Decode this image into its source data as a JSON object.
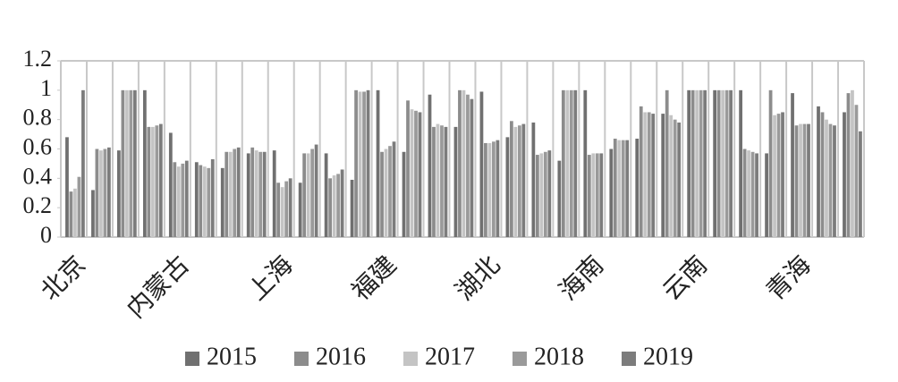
{
  "chart_data": {
    "type": "bar",
    "categories": [
      "北京",
      null,
      null,
      null,
      "内蒙古",
      null,
      null,
      null,
      "上海",
      null,
      null,
      null,
      "福建",
      null,
      null,
      null,
      "湖北",
      null,
      null,
      null,
      "海南",
      null,
      null,
      null,
      "云南",
      null,
      null,
      null,
      "青海",
      null,
      null
    ],
    "series": [
      {
        "name": "2015",
        "color": "#707070",
        "values": [
          0.68,
          0.32,
          0.59,
          1,
          0.71,
          0.51,
          0.47,
          0.57,
          0.59,
          0.37,
          0.57,
          0.39,
          1,
          0.58,
          0.97,
          0.75,
          0.99,
          0.68,
          0.78,
          0.52,
          1,
          0.6,
          0.67,
          0.84,
          1,
          1,
          1,
          0.57,
          0.98,
          0.89,
          0.85
        ]
      },
      {
        "name": "2016",
        "color": "#8c8c8c",
        "values": [
          0.31,
          0.6,
          1,
          0.75,
          0.51,
          0.49,
          0.58,
          0.61,
          0.37,
          0.57,
          0.4,
          1,
          0.58,
          0.93,
          0.75,
          1,
          0.64,
          0.79,
          0.56,
          1,
          0.56,
          0.67,
          0.89,
          1,
          1,
          1,
          0.6,
          1,
          0.76,
          0.85,
          0.98
        ]
      },
      {
        "name": "2017",
        "color": "#c4c4c4",
        "values": [
          0.33,
          0.59,
          1,
          0.75,
          0.48,
          0.48,
          0.58,
          0.59,
          0.34,
          0.57,
          0.42,
          0.99,
          0.6,
          0.87,
          0.77,
          1,
          0.64,
          0.75,
          0.57,
          1,
          0.57,
          0.66,
          0.85,
          0.83,
          1,
          1,
          0.59,
          0.83,
          0.77,
          0.8,
          1
        ]
      },
      {
        "name": "2018",
        "color": "#9a9a9a",
        "values": [
          0.41,
          0.6,
          1,
          0.76,
          0.5,
          0.47,
          0.6,
          0.58,
          0.38,
          0.6,
          0.43,
          0.99,
          0.62,
          0.86,
          0.76,
          0.97,
          0.65,
          0.76,
          0.58,
          1,
          0.57,
          0.66,
          0.85,
          0.8,
          1,
          1,
          0.58,
          0.84,
          0.77,
          0.77,
          0.9
        ]
      },
      {
        "name": "2019",
        "color": "#7c7c7c",
        "values": [
          1,
          0.61,
          1,
          0.77,
          0.52,
          0.53,
          0.61,
          0.58,
          0.4,
          0.63,
          0.46,
          1,
          0.65,
          0.85,
          0.75,
          0.94,
          0.66,
          0.77,
          0.59,
          1,
          0.57,
          0.66,
          0.84,
          0.78,
          1,
          1,
          0.57,
          0.85,
          0.77,
          0.76,
          0.72
        ]
      }
    ],
    "ylim": [
      0,
      1.2
    ],
    "yticks": [
      0,
      0.2,
      0.4,
      0.6,
      0.8,
      1,
      1.2
    ],
    "grid": true,
    "legend": "bottom"
  }
}
